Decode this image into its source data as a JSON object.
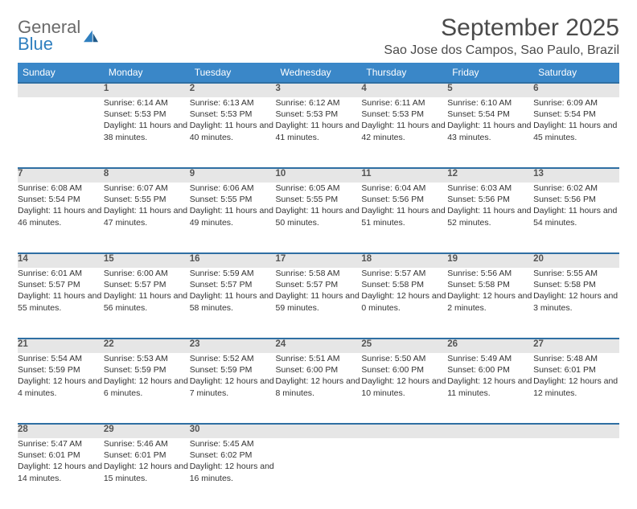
{
  "logo": {
    "line1": "General",
    "line2": "Blue"
  },
  "title": "September 2025",
  "location": "Sao Jose dos Campos, Sao Paulo, Brazil",
  "headers": [
    "Sunday",
    "Monday",
    "Tuesday",
    "Wednesday",
    "Thursday",
    "Friday",
    "Saturday"
  ],
  "header_bg": "#3a87c8",
  "header_fg": "#ffffff",
  "daynum_bg": "#e6e6e6",
  "daynum_border": "#2f6fa3",
  "text_color": "#333333",
  "cell_fontsize": 10.5,
  "weeks": [
    [
      null,
      {
        "n": "1",
        "sr": "6:14 AM",
        "ss": "5:53 PM",
        "dl": "11 hours and 38 minutes."
      },
      {
        "n": "2",
        "sr": "6:13 AM",
        "ss": "5:53 PM",
        "dl": "11 hours and 40 minutes."
      },
      {
        "n": "3",
        "sr": "6:12 AM",
        "ss": "5:53 PM",
        "dl": "11 hours and 41 minutes."
      },
      {
        "n": "4",
        "sr": "6:11 AM",
        "ss": "5:53 PM",
        "dl": "11 hours and 42 minutes."
      },
      {
        "n": "5",
        "sr": "6:10 AM",
        "ss": "5:54 PM",
        "dl": "11 hours and 43 minutes."
      },
      {
        "n": "6",
        "sr": "6:09 AM",
        "ss": "5:54 PM",
        "dl": "11 hours and 45 minutes."
      }
    ],
    [
      {
        "n": "7",
        "sr": "6:08 AM",
        "ss": "5:54 PM",
        "dl": "11 hours and 46 minutes."
      },
      {
        "n": "8",
        "sr": "6:07 AM",
        "ss": "5:55 PM",
        "dl": "11 hours and 47 minutes."
      },
      {
        "n": "9",
        "sr": "6:06 AM",
        "ss": "5:55 PM",
        "dl": "11 hours and 49 minutes."
      },
      {
        "n": "10",
        "sr": "6:05 AM",
        "ss": "5:55 PM",
        "dl": "11 hours and 50 minutes."
      },
      {
        "n": "11",
        "sr": "6:04 AM",
        "ss": "5:56 PM",
        "dl": "11 hours and 51 minutes."
      },
      {
        "n": "12",
        "sr": "6:03 AM",
        "ss": "5:56 PM",
        "dl": "11 hours and 52 minutes."
      },
      {
        "n": "13",
        "sr": "6:02 AM",
        "ss": "5:56 PM",
        "dl": "11 hours and 54 minutes."
      }
    ],
    [
      {
        "n": "14",
        "sr": "6:01 AM",
        "ss": "5:57 PM",
        "dl": "11 hours and 55 minutes."
      },
      {
        "n": "15",
        "sr": "6:00 AM",
        "ss": "5:57 PM",
        "dl": "11 hours and 56 minutes."
      },
      {
        "n": "16",
        "sr": "5:59 AM",
        "ss": "5:57 PM",
        "dl": "11 hours and 58 minutes."
      },
      {
        "n": "17",
        "sr": "5:58 AM",
        "ss": "5:57 PM",
        "dl": "11 hours and 59 minutes."
      },
      {
        "n": "18",
        "sr": "5:57 AM",
        "ss": "5:58 PM",
        "dl": "12 hours and 0 minutes."
      },
      {
        "n": "19",
        "sr": "5:56 AM",
        "ss": "5:58 PM",
        "dl": "12 hours and 2 minutes."
      },
      {
        "n": "20",
        "sr": "5:55 AM",
        "ss": "5:58 PM",
        "dl": "12 hours and 3 minutes."
      }
    ],
    [
      {
        "n": "21",
        "sr": "5:54 AM",
        "ss": "5:59 PM",
        "dl": "12 hours and 4 minutes."
      },
      {
        "n": "22",
        "sr": "5:53 AM",
        "ss": "5:59 PM",
        "dl": "12 hours and 6 minutes."
      },
      {
        "n": "23",
        "sr": "5:52 AM",
        "ss": "5:59 PM",
        "dl": "12 hours and 7 minutes."
      },
      {
        "n": "24",
        "sr": "5:51 AM",
        "ss": "6:00 PM",
        "dl": "12 hours and 8 minutes."
      },
      {
        "n": "25",
        "sr": "5:50 AM",
        "ss": "6:00 PM",
        "dl": "12 hours and 10 minutes."
      },
      {
        "n": "26",
        "sr": "5:49 AM",
        "ss": "6:00 PM",
        "dl": "12 hours and 11 minutes."
      },
      {
        "n": "27",
        "sr": "5:48 AM",
        "ss": "6:01 PM",
        "dl": "12 hours and 12 minutes."
      }
    ],
    [
      {
        "n": "28",
        "sr": "5:47 AM",
        "ss": "6:01 PM",
        "dl": "12 hours and 14 minutes."
      },
      {
        "n": "29",
        "sr": "5:46 AM",
        "ss": "6:01 PM",
        "dl": "12 hours and 15 minutes."
      },
      {
        "n": "30",
        "sr": "5:45 AM",
        "ss": "6:02 PM",
        "dl": "12 hours and 16 minutes."
      },
      null,
      null,
      null,
      null
    ]
  ],
  "labels": {
    "sunrise": "Sunrise:",
    "sunset": "Sunset:",
    "daylight": "Daylight:"
  }
}
